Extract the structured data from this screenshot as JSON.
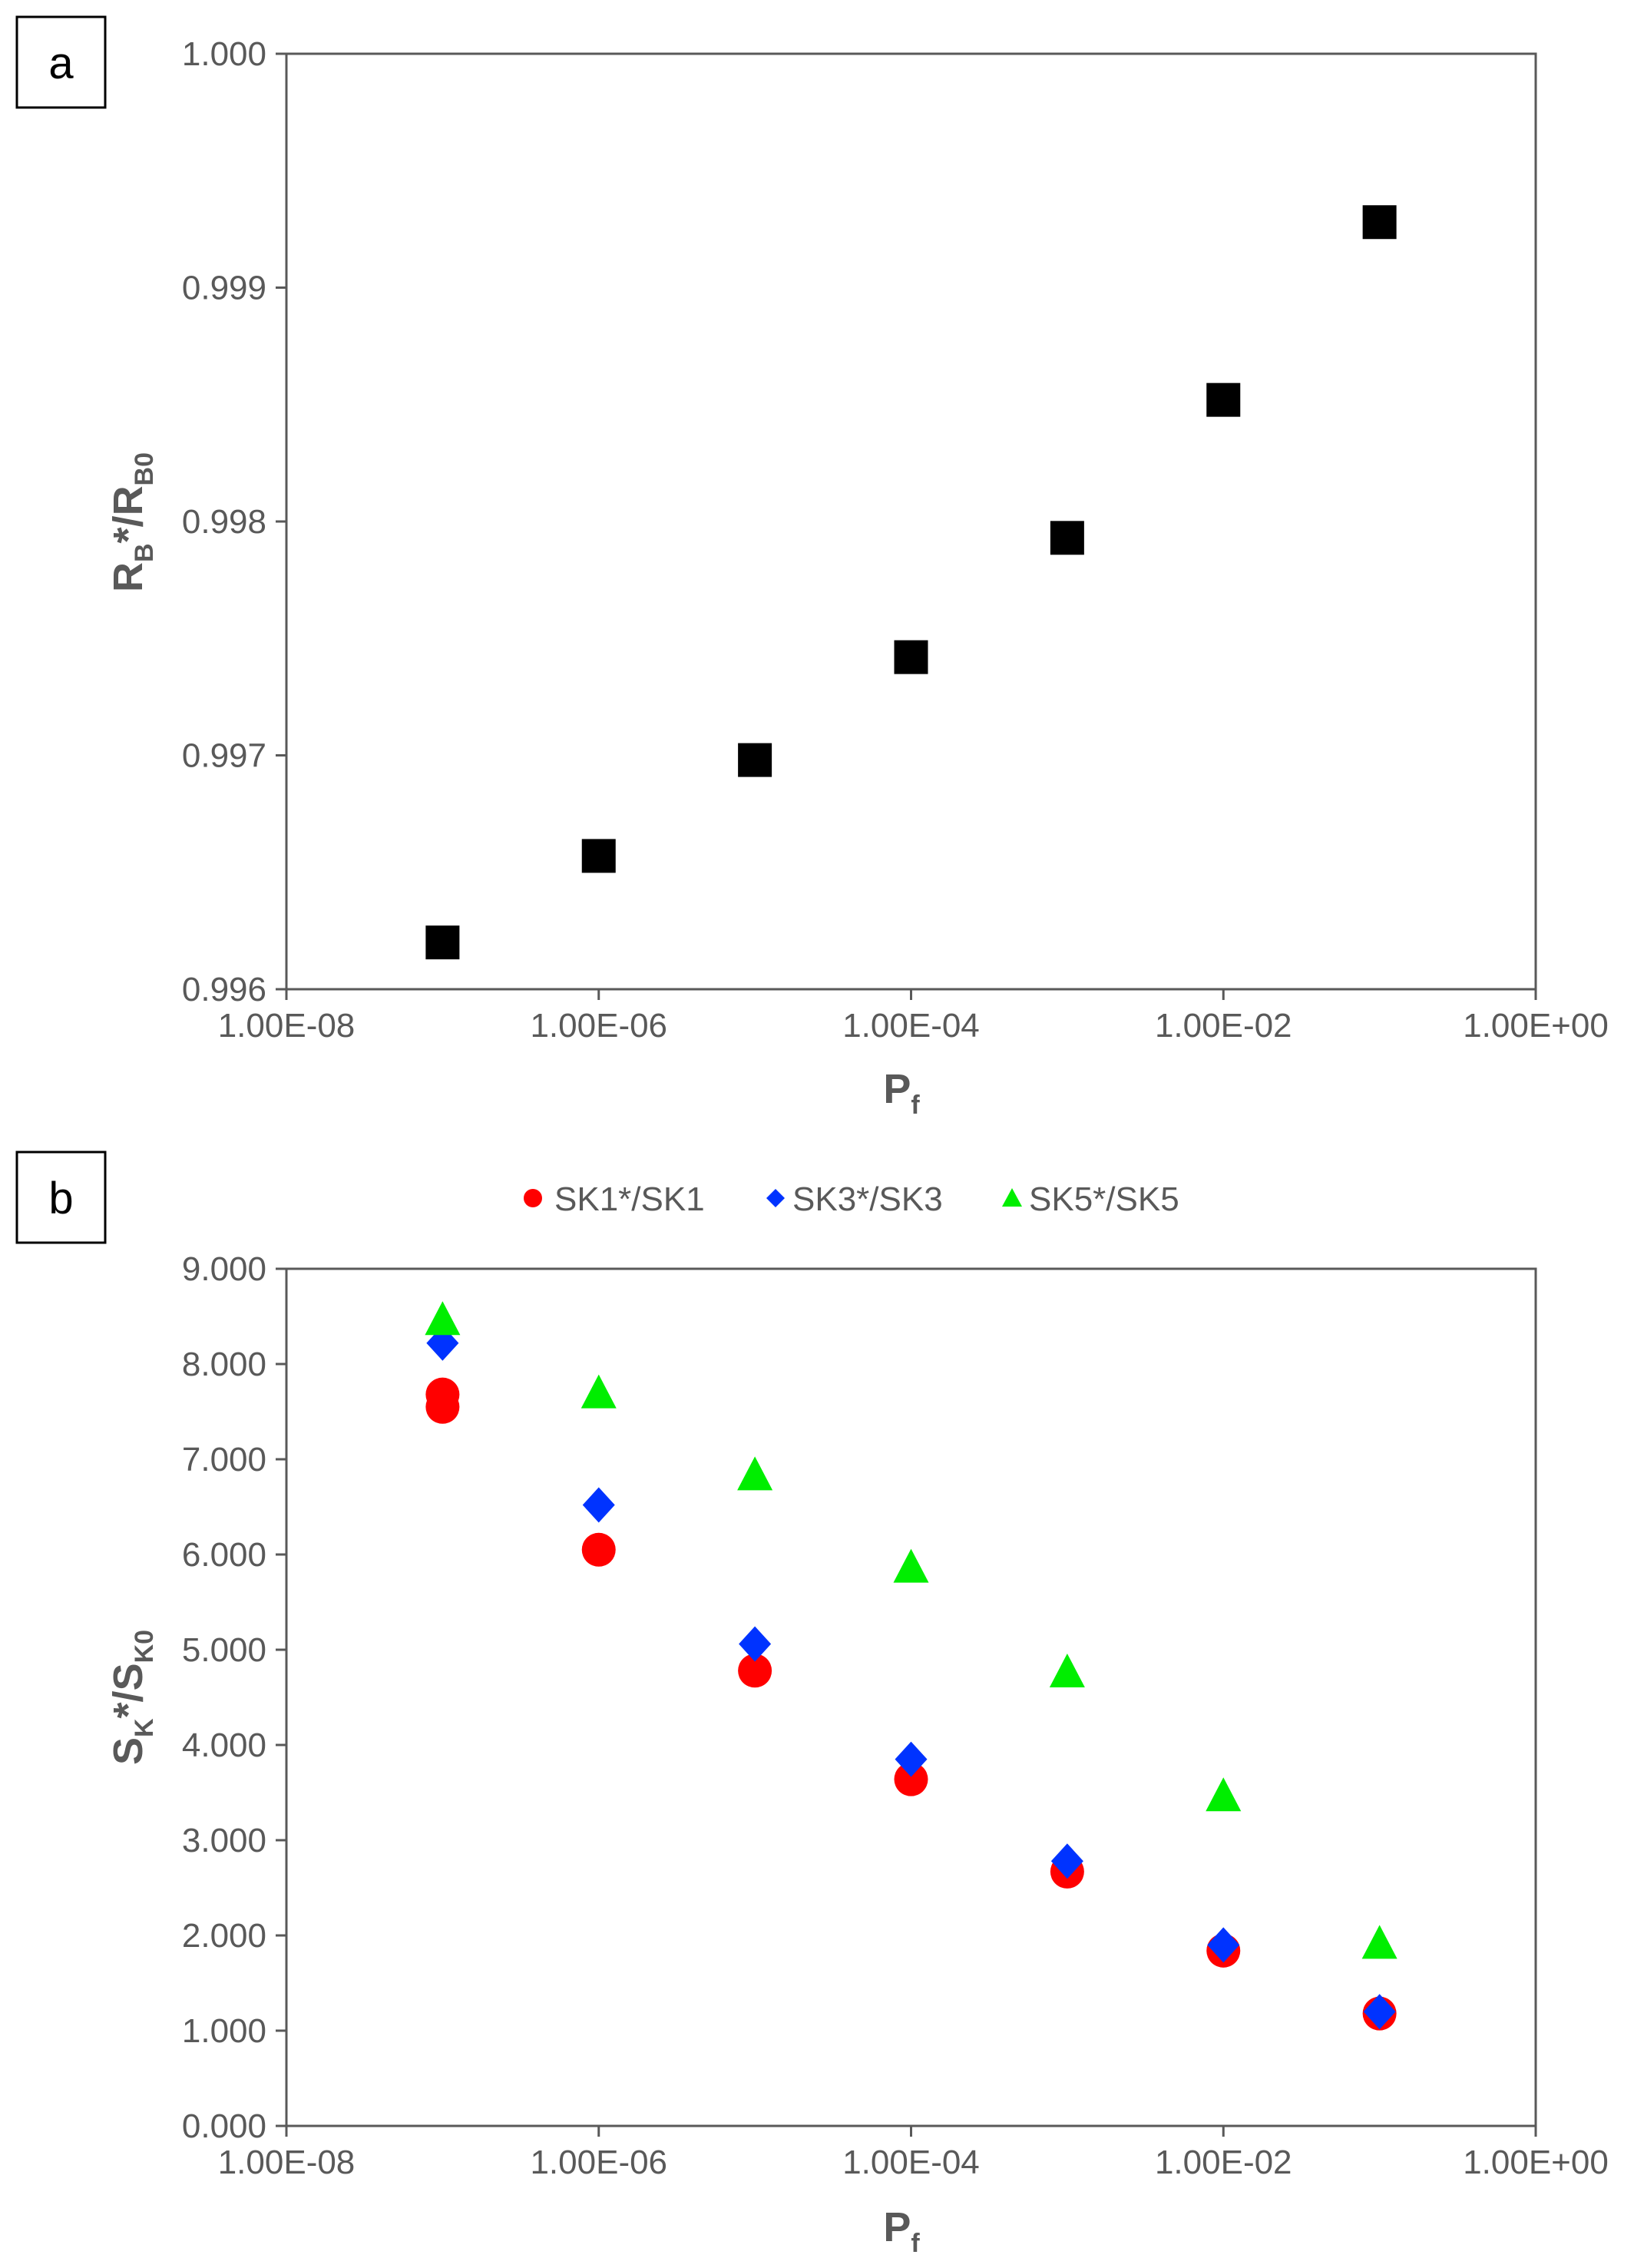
{
  "colors": {
    "red": "#ff0000",
    "blue": "#0033ff",
    "green": "#00ee00",
    "black": "#000000",
    "axis": "#595959"
  },
  "chart_data": [
    {
      "type": "scatter",
      "panel_label": "a",
      "title": "",
      "xscale": "log",
      "xlim": [
        1e-08,
        1
      ],
      "ylim": [
        0.996,
        1.0
      ],
      "xticks": [
        "1.00E-08",
        "1.00E-06",
        "1.00E-04",
        "1.00E-02",
        "1.00E+00"
      ],
      "yticks": [
        "0.996",
        "0.997",
        "0.998",
        "0.999",
        "1.000"
      ],
      "xlabel": {
        "main": "P",
        "sub": "f"
      },
      "ylabel": {
        "p1": "R",
        "s1": "B",
        "p2": "*/R",
        "s2": "B0"
      },
      "grid": false,
      "series": [
        {
          "name": "RB*/RB0",
          "marker": "square",
          "color": "#000000",
          "x": [
            1e-07,
            1e-06,
            1e-05,
            0.0001,
            0.001,
            0.01,
            0.1
          ],
          "values": [
            0.9962,
            0.99657,
            0.99698,
            0.99742,
            0.99793,
            0.99852,
            0.99928
          ]
        }
      ]
    },
    {
      "type": "scatter",
      "panel_label": "b",
      "title": "",
      "xscale": "log",
      "xlim": [
        1e-08,
        1
      ],
      "ylim": [
        0,
        9
      ],
      "xticks": [
        "1.00E-08",
        "1.00E-06",
        "1.00E-04",
        "1.00E-02",
        "1.00E+00"
      ],
      "yticks": [
        "0.000",
        "1.000",
        "2.000",
        "3.000",
        "4.000",
        "5.000",
        "6.000",
        "7.000",
        "8.000",
        "9.000"
      ],
      "xlabel": {
        "main": "P",
        "sub": "f"
      },
      "ylabel": {
        "p1": "S",
        "s1": "K",
        "p2": "*/S",
        "s2": "K0"
      },
      "legend_position": "top",
      "grid": false,
      "series": [
        {
          "name": "SK1*/SK1",
          "marker": "circle",
          "color": "#ff0000",
          "x": [
            1e-07,
            1e-07,
            1e-06,
            1e-05,
            0.0001,
            0.001,
            0.01,
            0.1
          ],
          "values": [
            7.55,
            7.68,
            6.05,
            4.78,
            3.64,
            2.67,
            1.84,
            1.18
          ]
        },
        {
          "name": "SK3*/SK3",
          "marker": "diamond",
          "color": "#0033ff",
          "x": [
            1e-07,
            1e-06,
            1e-05,
            0.0001,
            0.001,
            0.01,
            0.1
          ],
          "values": [
            8.22,
            6.52,
            5.06,
            3.85,
            2.78,
            1.9,
            1.2
          ]
        },
        {
          "name": "SK5*/SK5",
          "marker": "triangle",
          "color": "#00ee00",
          "x": [
            1e-07,
            1e-06,
            1e-05,
            0.0001,
            0.001,
            0.01,
            0.1
          ],
          "values": [
            8.45,
            7.68,
            6.82,
            5.85,
            4.75,
            3.45,
            1.9
          ]
        }
      ]
    }
  ]
}
